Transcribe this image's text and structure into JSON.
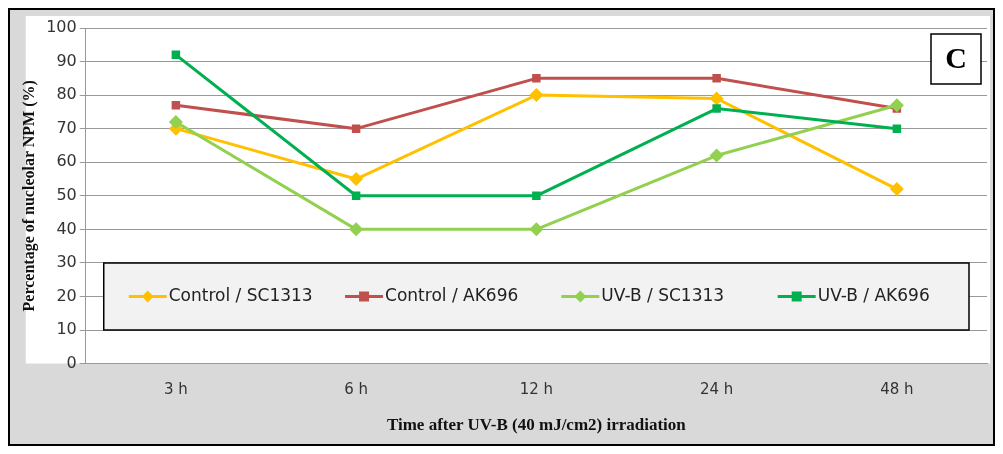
{
  "chart_data": {
    "type": "line",
    "xlabel": "Time after UV-B (40 mJ/cm2) irradiation",
    "ylabel": "Percentage of nucleolar NPM (%)",
    "annotations": [
      "C"
    ],
    "categories": [
      "3 h",
      "6 h",
      "12 h",
      "24 h",
      "48 h"
    ],
    "series": [
      {
        "name": "Control / SC1313",
        "color": "#ffc000",
        "marker": "diamond",
        "values": [
          70,
          55,
          80,
          79,
          52
        ]
      },
      {
        "name": "Control / AK696",
        "color": "#c0504d",
        "marker": "square",
        "values": [
          77,
          70,
          85,
          85,
          76
        ]
      },
      {
        "name": "UV-B / SC1313",
        "color": "#92d050",
        "marker": "diamond",
        "values": [
          72,
          40,
          40,
          62,
          77
        ]
      },
      {
        "name": "UV-B / AK696",
        "color": "#00b050",
        "marker": "square",
        "values": [
          92,
          50,
          50,
          76,
          70
        ]
      }
    ],
    "ylim": [
      0,
      100
    ],
    "yticks": [
      0,
      10,
      20,
      30,
      40,
      50,
      60,
      70,
      80,
      90,
      100
    ],
    "grid": "y",
    "legend": "bottom",
    "line_style": "solid"
  }
}
